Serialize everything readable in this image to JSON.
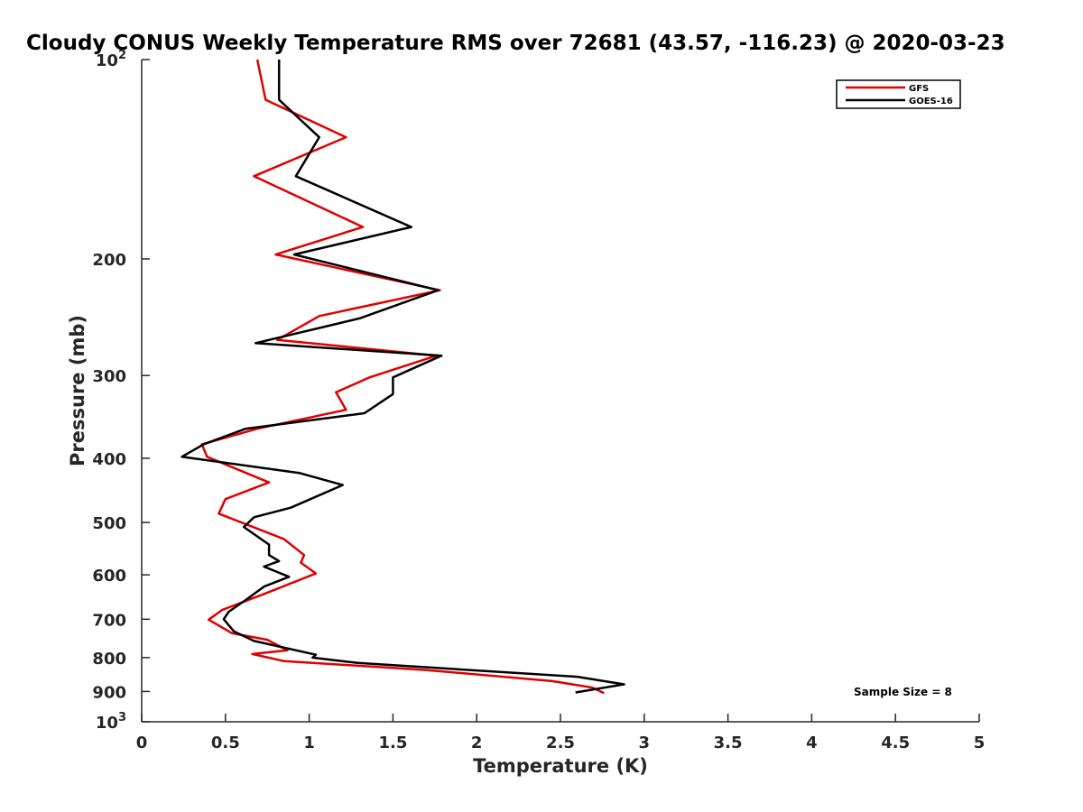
{
  "chart_data": {
    "type": "line",
    "title": "Cloudy CONUS Weekly Temperature RMS over 72681 (43.57, -116.23) @ 2020-03-23",
    "xlabel": "Temperature (K)",
    "ylabel": "Pressure (mb)",
    "xlim": [
      0,
      5
    ],
    "ylim": [
      100,
      1000
    ],
    "y_scale": "log",
    "y_reversed": true,
    "x_ticks": [
      "0",
      "0.5",
      "1",
      "1.5",
      "2",
      "2.5",
      "3",
      "3.5",
      "4",
      "4.5",
      "5"
    ],
    "y_ticks": [
      {
        "value": 100,
        "base": "10",
        "exp": "2"
      },
      {
        "value": 200,
        "label": "200"
      },
      {
        "value": 300,
        "label": "300"
      },
      {
        "value": 400,
        "label": "400"
      },
      {
        "value": 500,
        "label": "500"
      },
      {
        "value": 600,
        "label": "600"
      },
      {
        "value": 700,
        "label": "700"
      },
      {
        "value": 800,
        "label": "800"
      },
      {
        "value": 900,
        "label": "900"
      },
      {
        "value": 1000,
        "base": "10",
        "exp": "3"
      }
    ],
    "legend_position": "top-right",
    "annotation": "Sample Size = 8",
    "series": [
      {
        "name": "GFS",
        "color": "#e00000",
        "points": [
          [
            0.69,
            100
          ],
          [
            0.74,
            115
          ],
          [
            1.22,
            131
          ],
          [
            0.67,
            150
          ],
          [
            1.32,
            179
          ],
          [
            0.8,
            197
          ],
          [
            1.78,
            223
          ],
          [
            1.06,
            244
          ],
          [
            0.81,
            265
          ],
          [
            1.76,
            280
          ],
          [
            1.36,
            302
          ],
          [
            1.16,
            318
          ],
          [
            1.22,
            338
          ],
          [
            0.69,
            361
          ],
          [
            0.36,
            381
          ],
          [
            0.39,
            398
          ],
          [
            0.76,
            435
          ],
          [
            0.5,
            461
          ],
          [
            0.46,
            485
          ],
          [
            0.85,
            530
          ],
          [
            0.97,
            560
          ],
          [
            0.95,
            575
          ],
          [
            1.04,
            597
          ],
          [
            0.74,
            640
          ],
          [
            0.48,
            678
          ],
          [
            0.4,
            701
          ],
          [
            0.54,
            735
          ],
          [
            0.75,
            752
          ],
          [
            0.87,
            780
          ],
          [
            0.66,
            790
          ],
          [
            0.85,
            810
          ],
          [
            1.69,
            835
          ],
          [
            2.45,
            868
          ],
          [
            2.69,
            888
          ],
          [
            2.76,
            905
          ]
        ]
      },
      {
        "name": "GOES-16",
        "color": "#000000",
        "points": [
          [
            0.82,
            100
          ],
          [
            0.82,
            115
          ],
          [
            1.06,
            131
          ],
          [
            0.92,
            150
          ],
          [
            1.61,
            179
          ],
          [
            0.91,
            197
          ],
          [
            1.77,
            223
          ],
          [
            1.3,
            246
          ],
          [
            0.68,
            268
          ],
          [
            1.79,
            280
          ],
          [
            1.5,
            302
          ],
          [
            1.5,
            320
          ],
          [
            1.33,
            342
          ],
          [
            0.62,
            361
          ],
          [
            0.37,
            381
          ],
          [
            0.24,
            398
          ],
          [
            0.94,
            421
          ],
          [
            1.2,
            439
          ],
          [
            0.89,
            475
          ],
          [
            0.67,
            491
          ],
          [
            0.61,
            508
          ],
          [
            0.76,
            540
          ],
          [
            0.76,
            560
          ],
          [
            0.82,
            572
          ],
          [
            0.73,
            583
          ],
          [
            0.88,
            604
          ],
          [
            0.73,
            625
          ],
          [
            0.62,
            655
          ],
          [
            0.52,
            682
          ],
          [
            0.49,
            700
          ],
          [
            0.55,
            730
          ],
          [
            0.67,
            755
          ],
          [
            1.04,
            792
          ],
          [
            1.02,
            800
          ],
          [
            1.29,
            815
          ],
          [
            2.6,
            855
          ],
          [
            2.88,
            878
          ],
          [
            2.59,
            903
          ]
        ]
      }
    ]
  }
}
